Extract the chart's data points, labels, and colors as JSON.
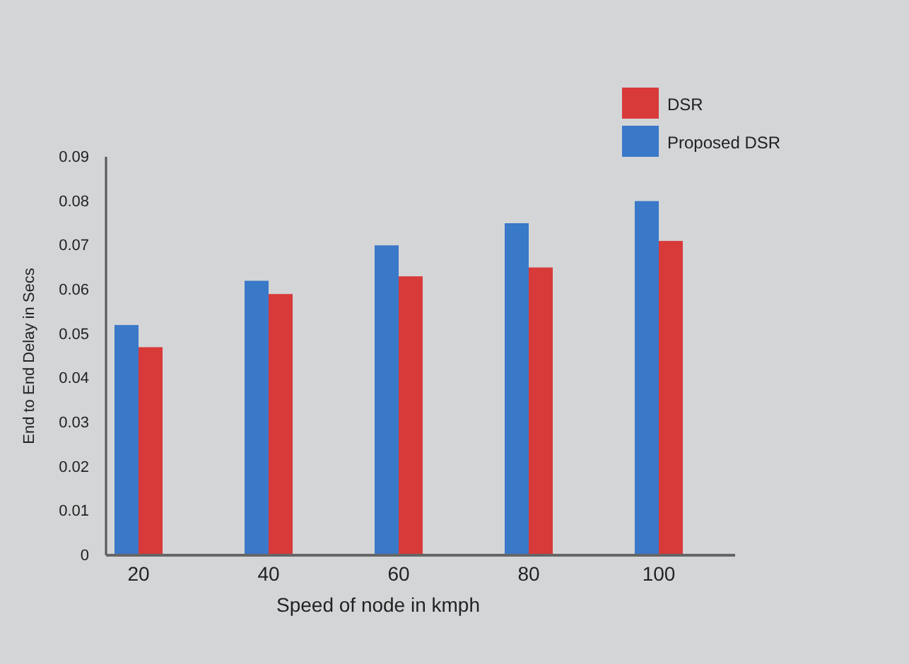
{
  "chart_data": {
    "type": "bar",
    "xlabel": "Speed of node in kmph",
    "ylabel": "End to End Delay in Secs",
    "categories": [
      "20",
      "40",
      "60",
      "80",
      "100"
    ],
    "series": [
      {
        "name": "Proposed DSR",
        "color": "#3a78c8",
        "values": [
          0.052,
          0.062,
          0.07,
          0.075,
          0.08
        ]
      },
      {
        "name": "DSR",
        "color": "#d83a3a",
        "values": [
          0.047,
          0.059,
          0.063,
          0.065,
          0.071
        ]
      }
    ],
    "ylim": [
      0,
      0.09
    ],
    "yticks": [
      0,
      0.01,
      0.02,
      0.03,
      0.04,
      0.05,
      0.06,
      0.07,
      0.08,
      0.09
    ],
    "grid": false,
    "legend": "top right"
  }
}
